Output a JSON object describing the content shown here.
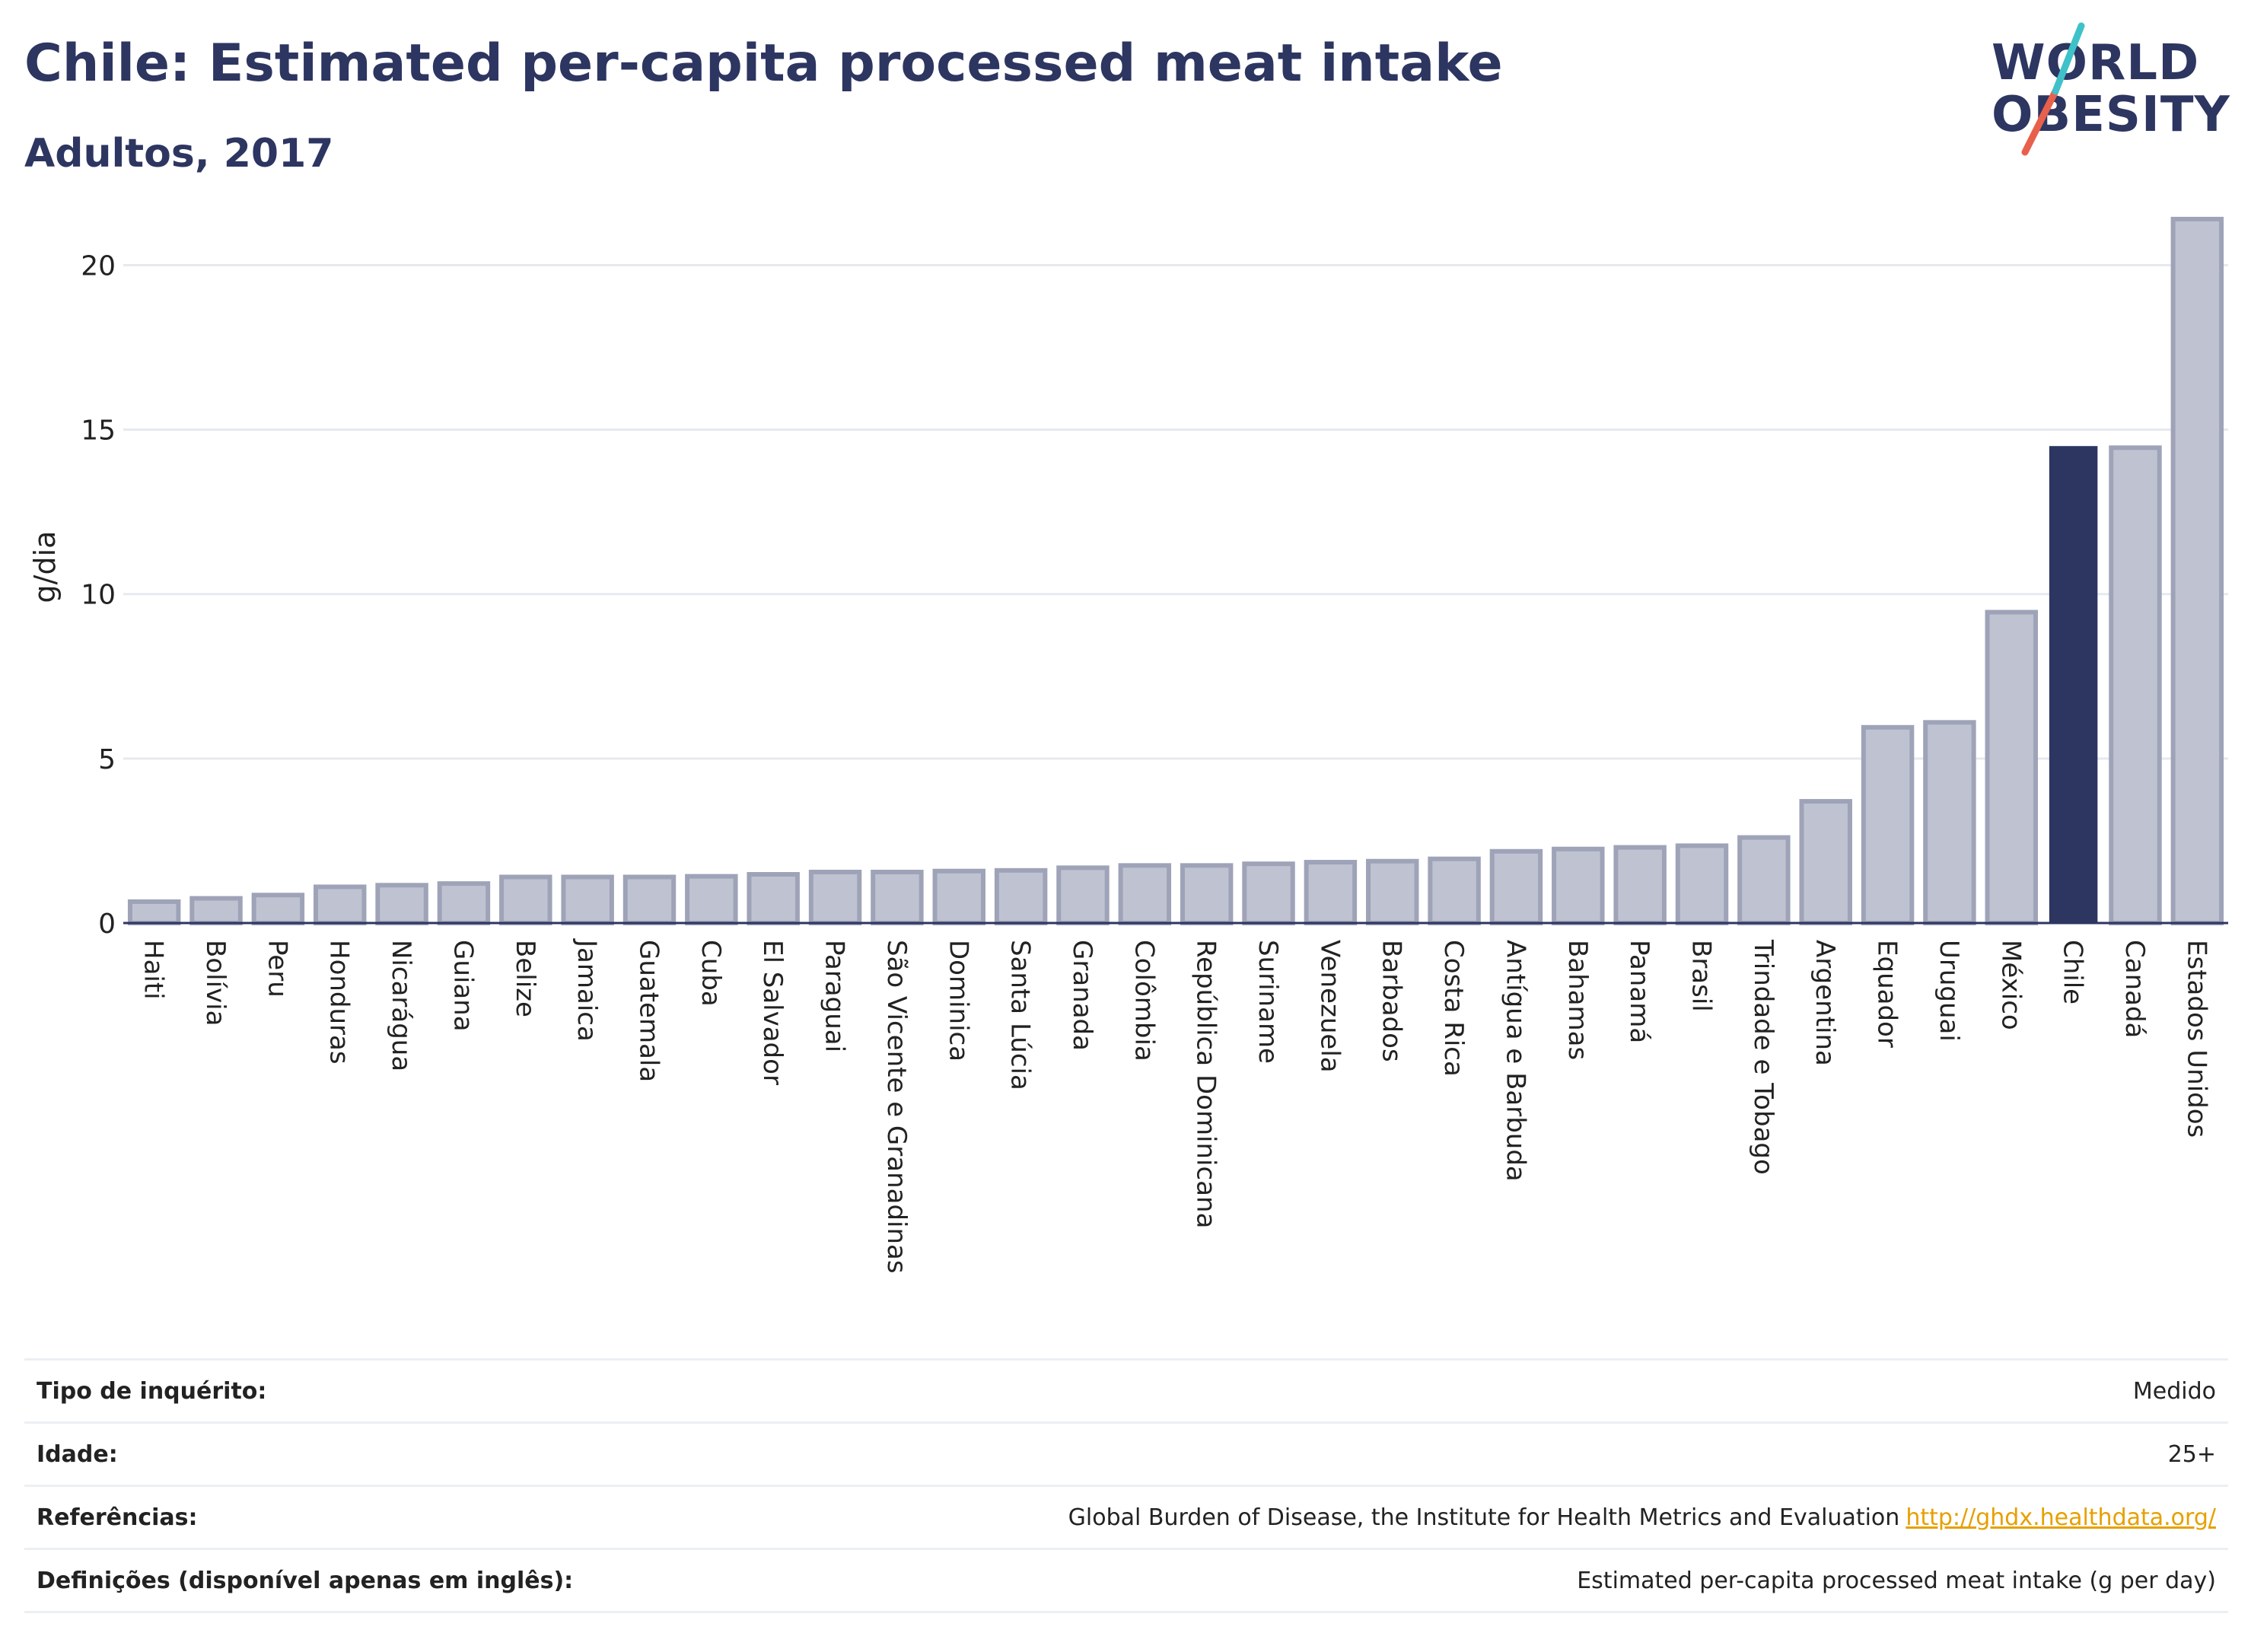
{
  "header": {
    "title": "Chile: Estimated per-capita processed meat intake",
    "subtitle": "Adultos, 2017"
  },
  "logo": {
    "line1": "WORLD",
    "line2": "OBESITY",
    "accent_teal": "#3fc1c9",
    "accent_red": "#e8604c"
  },
  "colors": {
    "bar": "#bfc3d1",
    "bar_border": "#9ea3b8",
    "highlight": "#2d3561",
    "grid": "#e6e9ef"
  },
  "chart_data": {
    "type": "bar",
    "ylabel": "g/dia",
    "ylim": [
      0,
      22
    ],
    "yticks": [
      0,
      5,
      10,
      15,
      20
    ],
    "grid": true,
    "highlight": "Chile",
    "categories": [
      "Haiti",
      "Bolívia",
      "Peru",
      "Honduras",
      "Nicarágua",
      "Guiana",
      "Belize",
      "Jamaica",
      "Guatemala",
      "Cuba",
      "El Salvador",
      "Paraguai",
      "São Vicente e Granadinas",
      "Dominica",
      "Santa Lúcia",
      "Granada",
      "Colômbia",
      "República Dominicana",
      "Suriname",
      "Venezuela",
      "Barbados",
      "Costa Rica",
      "Antígua e Barbuda",
      "Bahamas",
      "Panamá",
      "Brasil",
      "Trindade e Tobago",
      "Argentina",
      "Equador",
      "Uruguai",
      "México",
      "Chile",
      "Canadá",
      "Estados Unidos"
    ],
    "values": [
      0.65,
      0.75,
      0.85,
      1.1,
      1.15,
      1.2,
      1.4,
      1.4,
      1.4,
      1.42,
      1.48,
      1.55,
      1.55,
      1.58,
      1.6,
      1.68,
      1.75,
      1.75,
      1.8,
      1.85,
      1.88,
      1.95,
      2.18,
      2.25,
      2.3,
      2.35,
      2.6,
      3.7,
      5.95,
      6.1,
      9.45,
      14.5,
      14.45,
      21.4
    ]
  },
  "info": {
    "survey_label": "Tipo de inquérito:",
    "survey_value": "Medido",
    "age_label": "Idade:",
    "age_value": "25+",
    "refs_label": "Referências:",
    "refs_value": "Global Burden of Disease, the Institute for Health Metrics and Evaluation",
    "refs_link": "http://ghdx.healthdata.org/",
    "defs_label": "Definições (disponível apenas em inglês):",
    "defs_value": "Estimated per-capita processed meat intake (g per day)"
  }
}
